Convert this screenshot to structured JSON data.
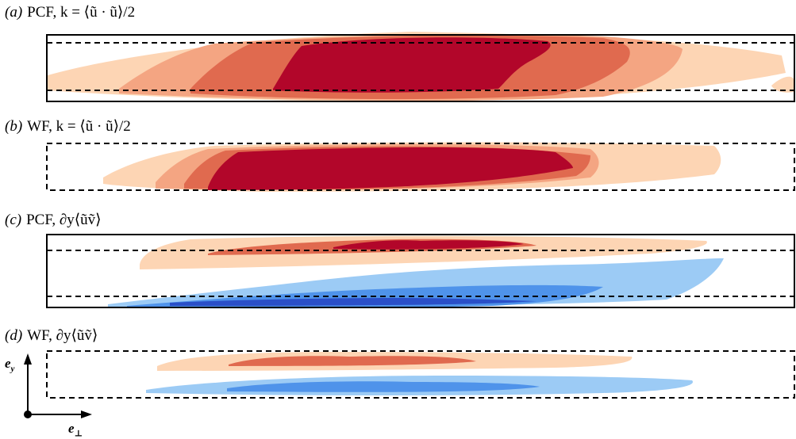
{
  "panels": [
    {
      "tag": "(a)",
      "title": "PCF, k = ⟨ũ · ũ⟩/2"
    },
    {
      "tag": "(b)",
      "title": "WF, k = ⟨ũ · ũ⟩/2"
    },
    {
      "tag": "(c)",
      "title": "PCF, ∂y⟨ũṽ⟩"
    },
    {
      "tag": "(d)",
      "title": "WF, ∂y⟨ũṽ⟩"
    }
  ],
  "axes": {
    "vertical_label": "e",
    "vertical_sub": "y",
    "horizontal_label": "e",
    "horizontal_sub": "⊥"
  },
  "colors": {
    "red_1": "#fdd5b4",
    "red_2": "#f4a582",
    "red_3": "#e06a4f",
    "red_4": "#b2062a",
    "blue_1": "#9ccbf5",
    "blue_2": "#4f93ea",
    "blue_3": "#2a4fc8"
  }
}
